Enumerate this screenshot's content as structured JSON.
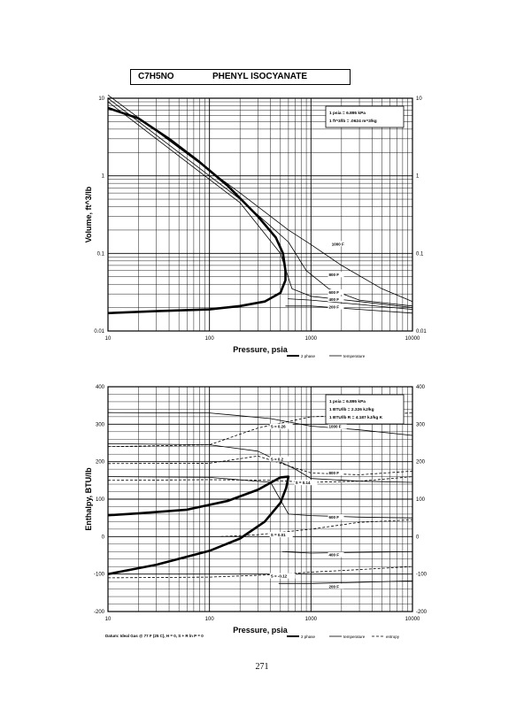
{
  "header": {
    "formula": "C7H5NO",
    "name": "PHENYL ISOCYANATE"
  },
  "page_number": "271",
  "chart_data": [
    {
      "type": "line",
      "title": "",
      "xlabel": "Pressure, psia",
      "ylabel": "Volume, ft^3/lb",
      "xscale": "log",
      "yscale": "log",
      "xlim": [
        10,
        10000
      ],
      "ylim": [
        0.01,
        10
      ],
      "grid": true,
      "xticks": [
        "10",
        "100",
        "1000",
        "10000"
      ],
      "yticks_left": [
        "10",
        "1",
        "0.1",
        "0.01"
      ],
      "yticks_right": [
        "10",
        "1",
        "0.1",
        "0.01"
      ],
      "legend": [
        "2 phase",
        "temperature"
      ],
      "notes": [
        "1 psia = 6.895 kPa",
        "1 ft^3/lb = .0624 m^3/kg"
      ],
      "series": [
        {
          "name": "2 phase",
          "points": [
            [
              10,
              0.017
            ],
            [
              30,
              0.018
            ],
            [
              100,
              0.019
            ],
            [
              200,
              0.021
            ],
            [
              350,
              0.024
            ],
            [
              500,
              0.031
            ],
            [
              560,
              0.045
            ],
            [
              560,
              0.06
            ],
            [
              530,
              0.1
            ],
            [
              450,
              0.16
            ],
            [
              300,
              0.3
            ],
            [
              150,
              0.75
            ],
            [
              80,
              1.5
            ],
            [
              40,
              3
            ],
            [
              20,
              5.5
            ],
            [
              10,
              7.5
            ]
          ]
        },
        {
          "name": "1000 F",
          "points": [
            [
              10,
              11
            ],
            [
              50,
              2.3
            ],
            [
              200,
              0.6
            ],
            [
              600,
              0.2
            ],
            [
              1000,
              0.13
            ],
            [
              2000,
              0.07
            ],
            [
              5000,
              0.035
            ],
            [
              10000,
              0.024
            ]
          ]
        },
        {
          "name": "800 F",
          "points": [
            [
              10,
              10
            ],
            [
              50,
              2
            ],
            [
              200,
              0.5
            ],
            [
              600,
              0.14
            ],
            [
              900,
              0.06
            ],
            [
              1500,
              0.035
            ],
            [
              3000,
              0.025
            ],
            [
              10000,
              0.021
            ]
          ]
        },
        {
          "name": "600 F",
          "points": [
            [
              10,
              9
            ],
            [
              50,
              1.8
            ],
            [
              200,
              0.45
            ],
            [
              500,
              0.1
            ],
            [
              650,
              0.035
            ],
            [
              1000,
              0.028
            ],
            [
              3000,
              0.024
            ],
            [
              10000,
              0.02
            ]
          ]
        },
        {
          "name": "400 F",
          "points": [
            [
              590,
              0.026
            ],
            [
              1000,
              0.025
            ],
            [
              3000,
              0.022
            ],
            [
              10000,
              0.019
            ]
          ]
        },
        {
          "name": "200 F",
          "points": [
            [
              560,
              0.021
            ],
            [
              1000,
              0.021
            ],
            [
              3000,
              0.019
            ],
            [
              10000,
              0.017
            ]
          ]
        }
      ],
      "temperature_labels": [
        {
          "text": "1000 F",
          "x": 1600,
          "y": 0.13
        },
        {
          "text": "800 F",
          "x": 1500,
          "y": 0.052
        },
        {
          "text": "600 F",
          "x": 1500,
          "y": 0.031
        },
        {
          "text": "400 F",
          "x": 1500,
          "y": 0.025
        },
        {
          "text": "200 F",
          "x": 1500,
          "y": 0.02
        }
      ]
    },
    {
      "type": "line",
      "title": "",
      "xlabel": "Pressure, psia",
      "ylabel": "Enthalpy, BTU/lb",
      "xscale": "log",
      "yscale": "linear",
      "xlim": [
        10,
        10000
      ],
      "ylim": [
        -200,
        400
      ],
      "grid": true,
      "xticks": [
        "10",
        "100",
        "1000",
        "10000"
      ],
      "yticks_left": [
        "400",
        "300",
        "200",
        "100",
        "0",
        "-100",
        "-200"
      ],
      "yticks_right": [
        "400",
        "300",
        "200",
        "100",
        "0",
        "-100",
        "-200"
      ],
      "legend": [
        "2 phase",
        "temperature",
        "entropy"
      ],
      "notes": [
        "1 psia = 6.895 kPa",
        "1 BTU/lb = 2.326 kJ/kg",
        "1 BTU/lb R = 4.187 kJ/kg K"
      ],
      "footnote": "Datum: Ideal Gas @ 77 F (25 C), H = 0, S + R ln P = 0",
      "series": [
        {
          "name": "2 phase",
          "points": [
            [
              10,
              -100
            ],
            [
              30,
              -75
            ],
            [
              100,
              -38
            ],
            [
              200,
              -5
            ],
            [
              350,
              40
            ],
            [
              500,
              90
            ],
            [
              570,
              130
            ],
            [
              600,
              160
            ],
            [
              500,
              158
            ],
            [
              300,
              125
            ],
            [
              150,
              95
            ],
            [
              60,
              72
            ],
            [
              20,
              62
            ],
            [
              10,
              57
            ]
          ]
        },
        {
          "name": "1000 F",
          "points": [
            [
              10,
              331
            ],
            [
              100,
              330
            ],
            [
              400,
              315
            ],
            [
              1000,
              295
            ],
            [
              3000,
              285
            ],
            [
              10000,
              270
            ]
          ]
        },
        {
          "name": "800 F",
          "points": [
            [
              10,
              248
            ],
            [
              100,
              245
            ],
            [
              300,
              228
            ],
            [
              700,
              180
            ],
            [
              1000,
              155
            ],
            [
              3000,
              148
            ],
            [
              10000,
              145
            ]
          ]
        },
        {
          "name": "600 F",
          "points": [
            [
              10,
              160
            ],
            [
              100,
              158
            ],
            [
              400,
              145
            ],
            [
              600,
              60
            ],
            [
              1000,
              56
            ],
            [
              3000,
              52
            ],
            [
              10000,
              50
            ]
          ]
        },
        {
          "name": "400 F",
          "points": [
            [
              520,
              -40
            ],
            [
              1000,
              -44
            ],
            [
              3000,
              -42
            ],
            [
              10000,
              -40
            ]
          ]
        },
        {
          "name": "200 F",
          "points": [
            [
              480,
              -125
            ],
            [
              1000,
              -125
            ],
            [
              3000,
              -122
            ],
            [
              10000,
              -118
            ]
          ]
        },
        {
          "name": "S = 0.26",
          "points": [
            [
              10,
              240
            ],
            [
              100,
              245
            ],
            [
              300,
              290
            ],
            [
              1000,
              320
            ],
            [
              10000,
              330
            ]
          ]
        },
        {
          "name": "S = 0.2",
          "points": [
            [
              10,
              195
            ],
            [
              100,
              196
            ],
            [
              300,
              215
            ],
            [
              1000,
              170
            ],
            [
              3000,
              165
            ],
            [
              10000,
              175
            ]
          ]
        },
        {
          "name": "S = 0.14",
          "points": [
            [
              10,
              150
            ],
            [
              100,
              152
            ],
            [
              400,
              150
            ],
            [
              1000,
              145
            ],
            [
              3000,
              148
            ],
            [
              10000,
              160
            ]
          ]
        },
        {
          "name": "S = 0.01",
          "points": [
            [
              130,
              0
            ],
            [
              300,
              5
            ],
            [
              1000,
              20
            ],
            [
              3000,
              38
            ],
            [
              10000,
              45
            ]
          ]
        },
        {
          "name": "S = -0.12",
          "points": [
            [
              10,
              -110
            ],
            [
              100,
              -108
            ],
            [
              400,
              -102
            ],
            [
              1000,
              -95
            ],
            [
              3000,
              -88
            ],
            [
              10000,
              -80
            ]
          ]
        }
      ],
      "temperature_labels": [
        {
          "text": "1000 F",
          "x": 1500,
          "y": 292
        },
        {
          "text": "800 F",
          "x": 1500,
          "y": 168
        },
        {
          "text": "600 F",
          "x": 1500,
          "y": 50
        },
        {
          "text": "400 F",
          "x": 1500,
          "y": -50
        },
        {
          "text": "200 F",
          "x": 1500,
          "y": -135
        }
      ],
      "entropy_labels": [
        {
          "text": "S = 0.26",
          "x": 400,
          "y": 292
        },
        {
          "text": "S = 0.2",
          "x": 400,
          "y": 205
        },
        {
          "text": "S = 0.14",
          "x": 700,
          "y": 142
        },
        {
          "text": "S = 0.01",
          "x": 400,
          "y": 3
        },
        {
          "text": "S = -0.12",
          "x": 400,
          "y": -107
        }
      ]
    }
  ]
}
